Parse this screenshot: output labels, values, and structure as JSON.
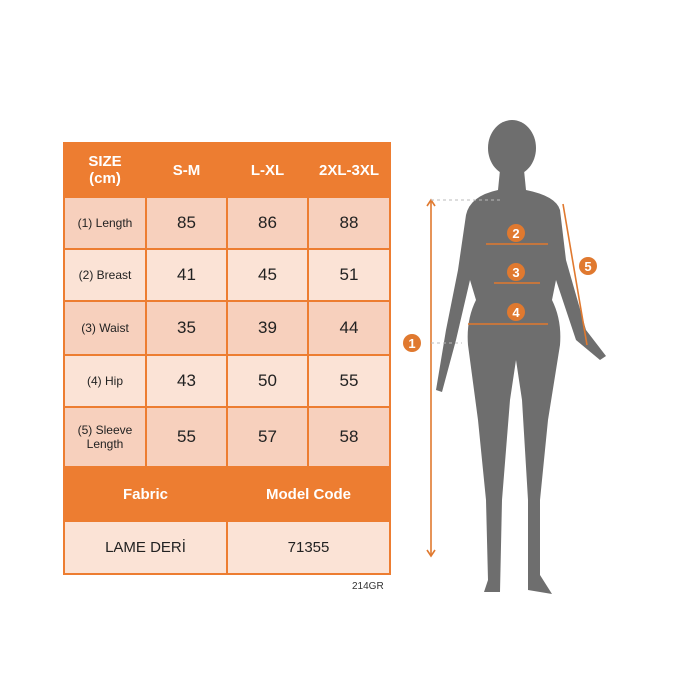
{
  "table": {
    "header": [
      "SIZE\n(cm)",
      "S-M",
      "L-XL",
      "2XL-3XL"
    ],
    "header_line1": "SIZE",
    "header_line2": "(cm)",
    "rows": [
      {
        "label": "(1) Length",
        "values": [
          "85",
          "86",
          "88"
        ]
      },
      {
        "label": "(2) Breast",
        "values": [
          "41",
          "45",
          "51"
        ]
      },
      {
        "label": "(3) Waist",
        "values": [
          "35",
          "39",
          "44"
        ]
      },
      {
        "label": "(4) Hip",
        "values": [
          "43",
          "50",
          "55"
        ]
      },
      {
        "label_line1": "(5) Sleeve",
        "label_line2": "Length",
        "values": [
          "55",
          "57",
          "58"
        ]
      }
    ],
    "fabric_header": "Fabric",
    "model_code_header": "Model Code",
    "fabric": "LAME DERİ",
    "model_code": "71355"
  },
  "code": "214GR",
  "figure": {
    "markers": [
      "1",
      "2",
      "3",
      "4",
      "5"
    ]
  },
  "colors": {
    "accent": "#ED7D31",
    "silhouette": "#6E6E6E"
  }
}
